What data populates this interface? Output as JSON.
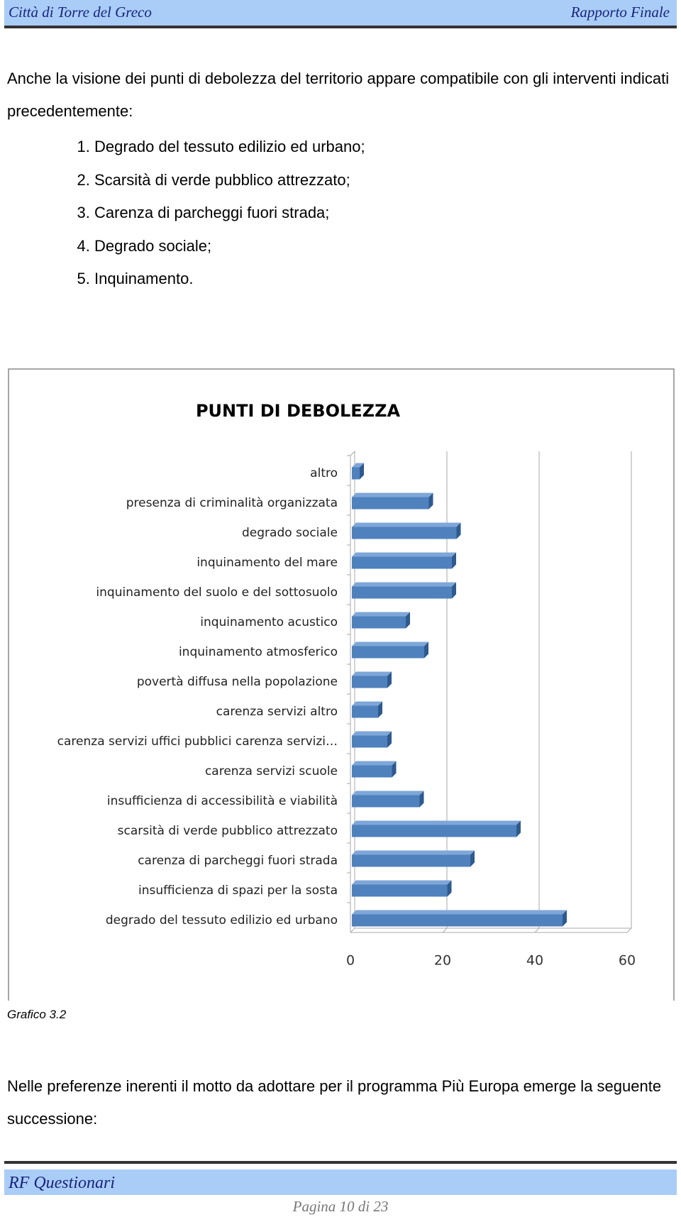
{
  "header": {
    "left": "Città di Torre del Greco",
    "right": "Rapporto Finale"
  },
  "paragraph_1": "Anche la visione dei punti di debolezza del territorio appare compatibile con gli interventi indicati precedentemente:",
  "list": [
    "Degrado del tessuto edilizio ed urbano;",
    "Scarsità di verde pubblico attrezzato;",
    "Carenza di parcheggi fuori strada;",
    "Degrado sociale;",
    "Inquinamento."
  ],
  "chart_data": {
    "type": "hbar",
    "title": "PUNTI DI DEBOLEZZA",
    "categories": [
      "altro",
      "presenza di criminalità organizzata",
      "degrado sociale",
      "inquinamento del mare",
      "inquinamento del suolo e del sottosuolo",
      "inquinamento acustico",
      "inquinamento atmosferico",
      "povertà diffusa nella popolazione",
      "carenza servizi altro",
      "carenza servizi uffici pubblici carenza servizi…",
      "carenza servizi scuole",
      "insufficienza di accessibilità e viabilità",
      "scarsità di verde pubblico attrezzato",
      "carenza di parcheggi fuori strada",
      "insufficienza di spazi per la sosta",
      "degrado del tessuto edilizio ed urbano"
    ],
    "values": [
      2,
      17,
      23,
      22,
      22,
      12,
      16,
      8,
      6,
      8,
      9,
      15,
      36,
      26,
      21,
      46
    ],
    "color": "#4f81bd",
    "xlim": [
      0,
      60
    ],
    "xticks": [
      0,
      20,
      40,
      60
    ],
    "grid": true
  },
  "caption": "Grafico 3.2",
  "paragraph_2": "Nelle preferenze inerenti il motto da adottare per il programma  Più Europa emerge la seguente successione:",
  "footer": {
    "left": "RF Questionari",
    "page": "Pagina 10 di 23"
  }
}
